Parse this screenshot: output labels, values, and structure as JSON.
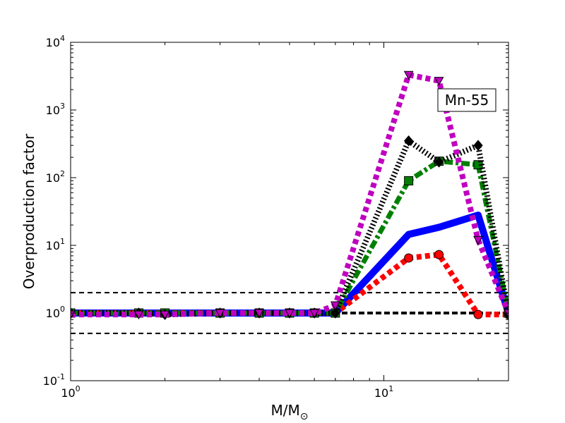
{
  "chart_data": {
    "type": "line",
    "annotation": "Mn-55",
    "xlabel_main": "M/M",
    "xlabel_sub": "⊙",
    "ylabel": "Overproduction factor",
    "x_scale": "log",
    "y_scale": "log",
    "xlim": [
      1,
      25
    ],
    "ylim": [
      0.1,
      10000
    ],
    "x_ticks": [
      {
        "value": 1,
        "base": "10",
        "exp": "0"
      },
      {
        "value": 10,
        "base": "10",
        "exp": "1"
      }
    ],
    "y_ticks": [
      {
        "value": 0.1,
        "base": "10",
        "exp": "-1"
      },
      {
        "value": 1,
        "base": "10",
        "exp": "0"
      },
      {
        "value": 10,
        "base": "10",
        "exp": "1"
      },
      {
        "value": 100,
        "base": "10",
        "exp": "2"
      },
      {
        "value": 1000,
        "base": "10",
        "exp": "3"
      },
      {
        "value": 10000,
        "base": "10",
        "exp": "4"
      }
    ],
    "reference_lines": [
      {
        "y": 2,
        "style": "dashed",
        "color": "#000000",
        "weight": "thin"
      },
      {
        "y": 1,
        "style": "dashed",
        "color": "#000000",
        "weight": "thick"
      },
      {
        "y": 0.5,
        "style": "dashed",
        "color": "#000000",
        "weight": "thin"
      }
    ],
    "series": [
      {
        "color": "#0000ff",
        "style": "solid",
        "marker": "none",
        "x": [
          1,
          1.65,
          2,
          3,
          4,
          5,
          6,
          7,
          12,
          15,
          20,
          25
        ],
        "y": [
          1,
          1,
          1,
          1,
          1,
          1,
          1,
          1,
          14.5,
          18.5,
          28,
          1
        ]
      },
      {
        "color": "#ff0000",
        "style": "dotted",
        "marker": "circle",
        "x": [
          1,
          1.65,
          2,
          3,
          4,
          5,
          6,
          7,
          12,
          15,
          20,
          25
        ],
        "y": [
          1,
          1,
          1,
          1,
          1,
          1,
          1,
          1,
          6.5,
          7.3,
          0.95,
          0.95
        ]
      },
      {
        "color": "#008000",
        "style": "dashdot",
        "marker": "square",
        "x": [
          1,
          1.65,
          2,
          3,
          4,
          5,
          6,
          7,
          12,
          15,
          20,
          25
        ],
        "y": [
          1,
          1,
          1,
          1,
          1,
          1,
          1,
          1,
          90,
          175,
          155,
          1
        ]
      },
      {
        "color": "#000000",
        "style": "hatched",
        "marker": "diamond",
        "x": [
          1,
          1.65,
          2,
          3,
          4,
          5,
          6,
          7,
          12,
          15,
          20,
          25
        ],
        "y": [
          1,
          1,
          0.95,
          1,
          1,
          1,
          1,
          1,
          350,
          170,
          300,
          0.95
        ]
      },
      {
        "color": "#bf00bf",
        "style": "dotted",
        "marker": "triangle-down",
        "x": [
          1,
          1.65,
          2,
          3,
          4,
          5,
          6,
          7,
          12,
          15,
          20,
          25
        ],
        "y": [
          0.95,
          0.95,
          0.95,
          1,
          1,
          1,
          1,
          1.3,
          3300,
          2700,
          12,
          1
        ]
      }
    ]
  }
}
